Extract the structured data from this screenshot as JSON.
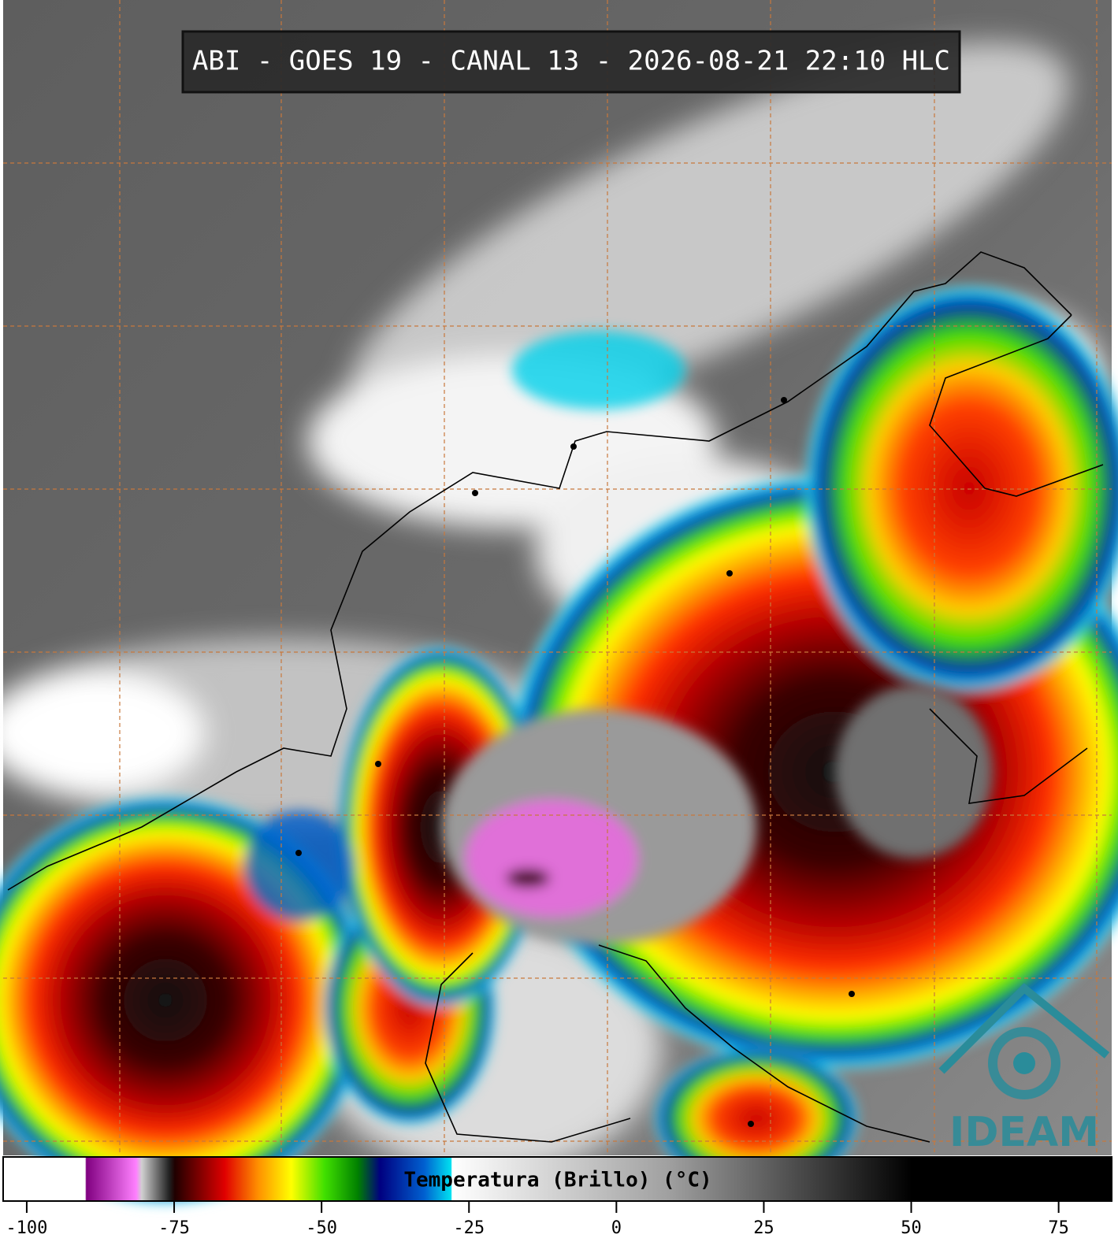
{
  "header": {
    "title": "ABI - GOES 19 - CANAL 13 - 2026-08-21 22:10 HLC"
  },
  "logo": {
    "text": "IDEAM"
  },
  "colorbar": {
    "label": "Temperatura (Brillo) (°C)",
    "range": [
      -104,
      84
    ],
    "ticks": [
      -100,
      -75,
      -50,
      -25,
      0,
      25,
      50,
      75
    ]
  }
}
